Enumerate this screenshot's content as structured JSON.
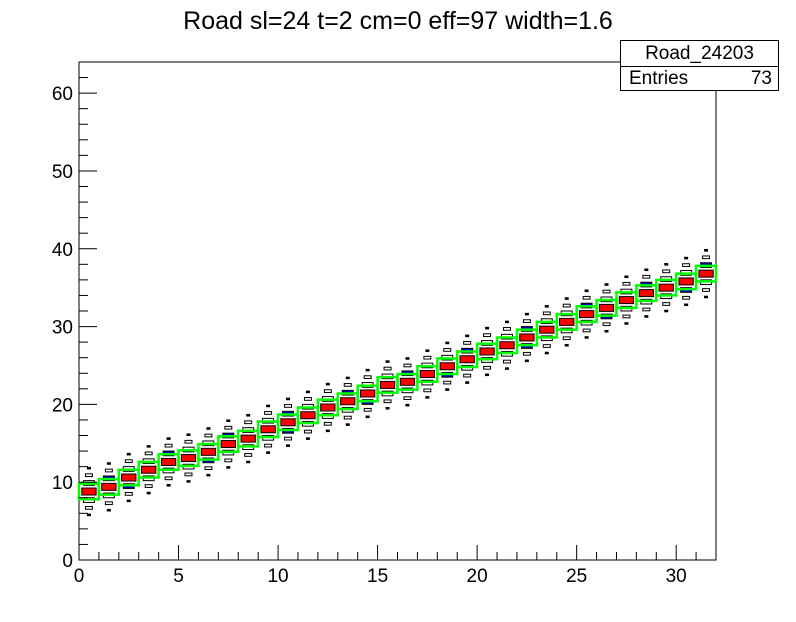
{
  "chart_data": {
    "type": "heatmap",
    "title": "Road sl=24 t=2 cm=0 eff=97 width=1.6",
    "xlabel": "",
    "ylabel": "",
    "xlim": [
      0,
      32
    ],
    "ylim": [
      0,
      64
    ],
    "x_ticks": [
      "0",
      "5",
      "10",
      "15",
      "20",
      "25",
      "30"
    ],
    "y_ticks": [
      "0",
      "10",
      "20",
      "30",
      "40",
      "50",
      "60"
    ],
    "grid": false,
    "stats": {
      "name": "Road_24203",
      "entries_label": "Entries",
      "entries_value": "73"
    },
    "road_y_centers": [
      8.8,
      9.4,
      10.6,
      11.6,
      12.6,
      13.1,
      13.9,
      14.9,
      15.6,
      16.8,
      17.7,
      18.6,
      19.6,
      20.4,
      21.4,
      22.5,
      22.9,
      23.9,
      24.9,
      25.8,
      26.8,
      27.6,
      28.6,
      29.6,
      30.6,
      31.6,
      32.4,
      33.4,
      34.3,
      35.0,
      35.8,
      36.8
    ],
    "legend_colors": {
      "road": "#00ff00",
      "high": "#ff0000",
      "mid": "#0000cc",
      "low": "#000000"
    }
  }
}
